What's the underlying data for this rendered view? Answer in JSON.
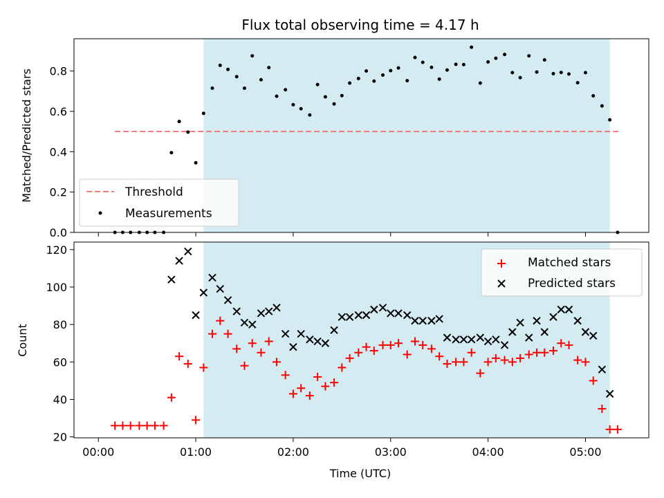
{
  "chart_data": [
    {
      "type": "scatter",
      "title": "Flux total observing time = 4.17 h",
      "xlabel": "",
      "ylabel": "Matched/Predicted stars",
      "xlim": [
        -0.25,
        5.65
      ],
      "ylim": [
        0.0,
        0.96
      ],
      "yticks": [
        0.0,
        0.2,
        0.4,
        0.6,
        0.8
      ],
      "ytick_labels": [
        "0.0",
        "0.2",
        "0.4",
        "0.6",
        "0.8"
      ],
      "span": [
        1.08,
        5.25
      ],
      "span_color": "#d4ebf1",
      "threshold": {
        "y": 0.5,
        "x": [
          0.17,
          5.35
        ],
        "color": "#ef7a7a",
        "name": "Threshold"
      },
      "legend_position": "lower-left",
      "series": [
        {
          "name": "Measurements",
          "color": "#000000",
          "marker": "dot",
          "x": [
            0.17,
            0.25,
            0.33,
            0.42,
            0.5,
            0.58,
            0.67,
            0.75,
            0.83,
            0.92,
            1.0,
            1.08,
            1.17,
            1.25,
            1.33,
            1.42,
            1.5,
            1.58,
            1.67,
            1.75,
            1.83,
            1.92,
            2.0,
            2.08,
            2.17,
            2.25,
            2.33,
            2.42,
            2.5,
            2.58,
            2.67,
            2.75,
            2.83,
            2.92,
            3.0,
            3.08,
            3.17,
            3.25,
            3.33,
            3.42,
            3.5,
            3.58,
            3.67,
            3.75,
            3.83,
            3.92,
            4.0,
            4.08,
            4.17,
            4.25,
            4.33,
            4.42,
            4.5,
            4.58,
            4.67,
            4.75,
            4.83,
            4.92,
            5.0,
            5.08,
            5.17,
            5.25,
            5.33
          ],
          "y": [
            0.0,
            0.0,
            0.0,
            0.0,
            0.0,
            0.0,
            0.0,
            0.395,
            0.55,
            0.497,
            0.345,
            0.59,
            0.715,
            0.828,
            0.808,
            0.772,
            0.715,
            0.875,
            0.757,
            0.817,
            0.675,
            0.707,
            0.633,
            0.613,
            0.582,
            0.733,
            0.672,
            0.637,
            0.678,
            0.74,
            0.763,
            0.8,
            0.75,
            0.78,
            0.802,
            0.815,
            0.752,
            0.867,
            0.843,
            0.818,
            0.76,
            0.805,
            0.833,
            0.832,
            0.918,
            0.74,
            0.845,
            0.863,
            0.882,
            0.792,
            0.767,
            0.875,
            0.795,
            0.855,
            0.787,
            0.793,
            0.785,
            0.742,
            0.792,
            0.677,
            0.627,
            0.558,
            0.0
          ]
        }
      ]
    },
    {
      "type": "scatter",
      "title": "",
      "xlabel": "Time (UTC)",
      "ylabel": "Count",
      "xlim": [
        -0.25,
        5.65
      ],
      "ylim": [
        19.5,
        124
      ],
      "yticks": [
        20,
        40,
        60,
        80,
        100,
        120
      ],
      "ytick_labels": [
        "20",
        "40",
        "60",
        "80",
        "100",
        "120"
      ],
      "xticks": [
        0,
        1,
        2,
        3,
        4,
        5
      ],
      "xtick_labels": [
        "00:00",
        "01:00",
        "02:00",
        "03:00",
        "04:00",
        "05:00"
      ],
      "span": [
        1.08,
        5.25
      ],
      "span_color": "#d4ebf1",
      "legend_position": "upper-right",
      "series": [
        {
          "name": "Matched stars",
          "color": "#ff0000",
          "marker": "plus",
          "x": [
            0.17,
            0.25,
            0.33,
            0.42,
            0.5,
            0.58,
            0.67,
            0.75,
            0.83,
            0.92,
            1.0,
            1.08,
            1.17,
            1.25,
            1.33,
            1.42,
            1.5,
            1.58,
            1.67,
            1.75,
            1.83,
            1.92,
            2.0,
            2.08,
            2.17,
            2.25,
            2.33,
            2.42,
            2.5,
            2.58,
            2.67,
            2.75,
            2.83,
            2.92,
            3.0,
            3.08,
            3.17,
            3.25,
            3.33,
            3.42,
            3.5,
            3.58,
            3.67,
            3.75,
            3.83,
            3.92,
            4.0,
            4.08,
            4.17,
            4.25,
            4.33,
            4.42,
            4.5,
            4.58,
            4.67,
            4.75,
            4.83,
            4.92,
            5.0,
            5.08,
            5.17,
            5.25,
            5.33
          ],
          "y": [
            26,
            26,
            26,
            26,
            26,
            26,
            26,
            41,
            63,
            59,
            29,
            57,
            75,
            82,
            75,
            67,
            58,
            70,
            65,
            71,
            60,
            53,
            43,
            46,
            42,
            52,
            47,
            49,
            57,
            62,
            65,
            68,
            66,
            69,
            69,
            70,
            64,
            71,
            69,
            67,
            63,
            59,
            60,
            60,
            65,
            54,
            60,
            62,
            61,
            60,
            62,
            64,
            65,
            65,
            66,
            70,
            69,
            61,
            60,
            50,
            35,
            24,
            24
          ]
        },
        {
          "name": "Predicted stars",
          "color": "#000000",
          "marker": "x",
          "x": [
            0.75,
            0.83,
            0.92,
            1.0,
            1.08,
            1.17,
            1.25,
            1.33,
            1.42,
            1.5,
            1.58,
            1.67,
            1.75,
            1.83,
            1.92,
            2.0,
            2.08,
            2.17,
            2.25,
            2.33,
            2.42,
            2.5,
            2.58,
            2.67,
            2.75,
            2.83,
            2.92,
            3.0,
            3.08,
            3.17,
            3.25,
            3.33,
            3.42,
            3.5,
            3.58,
            3.67,
            3.75,
            3.83,
            3.92,
            4.0,
            4.08,
            4.17,
            4.25,
            4.33,
            4.42,
            4.5,
            4.58,
            4.67,
            4.75,
            4.83,
            4.92,
            5.0,
            5.08,
            5.17,
            5.25
          ],
          "y": [
            104,
            114,
            119,
            85,
            97,
            105,
            99,
            93,
            87,
            81,
            80,
            86,
            87,
            89,
            75,
            68,
            75,
            72,
            71,
            70,
            77,
            84,
            84,
            85,
            85,
            88,
            89,
            86,
            86,
            85,
            82,
            82,
            82,
            83,
            73,
            72,
            72,
            72,
            73,
            71,
            72,
            69,
            76,
            81,
            73,
            82,
            76,
            84,
            88,
            88,
            82,
            76,
            74,
            56,
            43
          ]
        }
      ]
    }
  ]
}
